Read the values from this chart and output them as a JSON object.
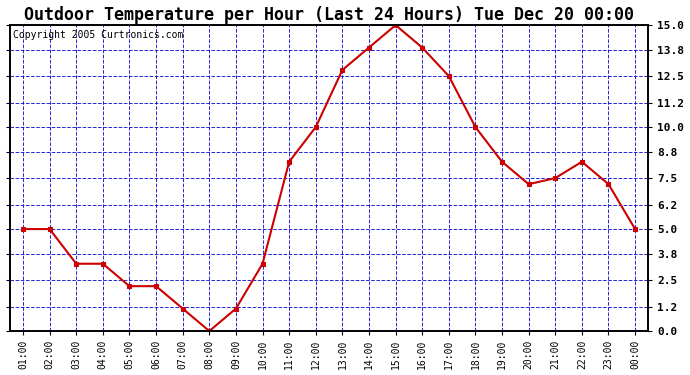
{
  "title": "Outdoor Temperature per Hour (Last 24 Hours) Tue Dec 20 00:00",
  "copyright": "Copyright 2005 Curtronics.com",
  "x_labels": [
    "01:00",
    "02:00",
    "03:00",
    "04:00",
    "05:00",
    "06:00",
    "07:00",
    "08:00",
    "09:00",
    "10:00",
    "11:00",
    "12:00",
    "13:00",
    "14:00",
    "15:00",
    "16:00",
    "17:00",
    "18:00",
    "19:00",
    "20:00",
    "21:00",
    "22:00",
    "23:00",
    "00:00"
  ],
  "y_values": [
    5.0,
    5.0,
    3.3,
    3.3,
    2.2,
    2.2,
    1.1,
    0.0,
    1.1,
    3.3,
    8.3,
    10.0,
    12.8,
    13.9,
    15.0,
    13.9,
    12.5,
    10.0,
    8.3,
    7.2,
    7.5,
    8.3,
    7.2,
    5.0
  ],
  "line_color": "#cc0000",
  "marker_color": "#cc0000",
  "bg_color": "#ffffff",
  "plot_bg_color": "#ffffff",
  "grid_color": "#0000cc",
  "title_fontsize": 12,
  "copyright_fontsize": 7,
  "y_min": 0.0,
  "y_max": 15.0,
  "y_ticks": [
    0.0,
    1.2,
    2.5,
    3.8,
    5.0,
    6.2,
    7.5,
    8.8,
    10.0,
    11.2,
    12.5,
    13.8,
    15.0
  ]
}
